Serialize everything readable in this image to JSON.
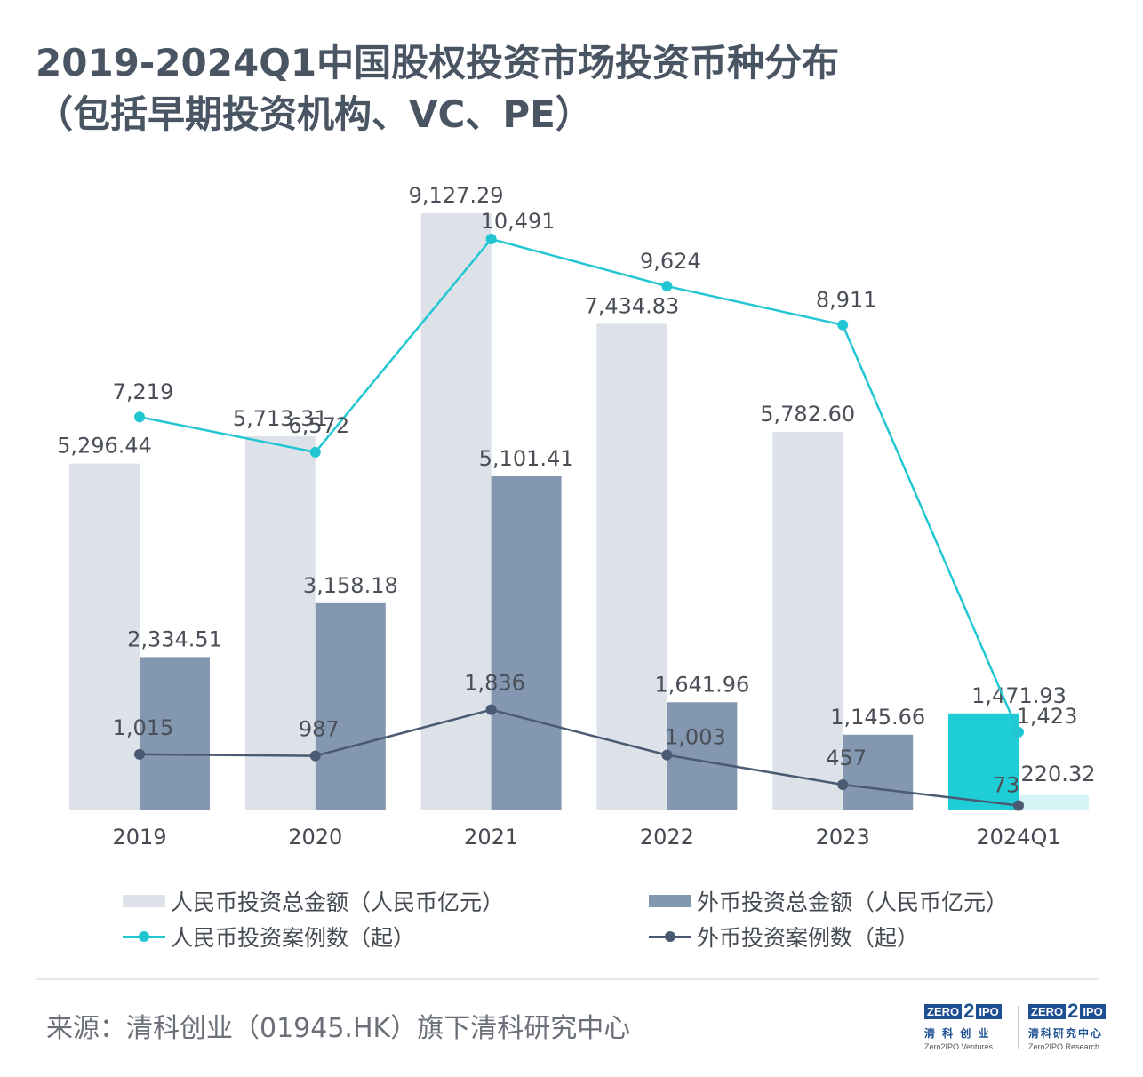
{
  "title": {
    "line1": "2019-2024Q1中国股权投资市场投资币种分布",
    "line2": "（包括早期投资机构、VC、PE）"
  },
  "colors": {
    "rmb_amount": "#dde1e8",
    "rmb_amount_2024": "#1fcdd6",
    "fx_amount": "#8397b0",
    "fx_amount_2024": "#d6f4f6",
    "rmb_count": "#22c6d3",
    "fx_count": "#4a5a72"
  },
  "chart_data": {
    "type": "bar",
    "categories": [
      "2019",
      "2020",
      "2021",
      "2022",
      "2023",
      "2024Q1"
    ],
    "series": [
      {
        "name": "人民币投资总金额（人民币亿元）",
        "kind": "bar",
        "values": [
          5296.44,
          5713.31,
          9127.29,
          7434.83,
          5782.6,
          1471.93
        ],
        "labels": [
          "5,296.44",
          "5,713.31",
          "9,127.29",
          "7,434.83",
          "5,782.60",
          "1,471.93"
        ]
      },
      {
        "name": "外币投资总金额（人民币亿元）",
        "kind": "bar",
        "values": [
          2334.51,
          3158.18,
          5101.41,
          1641.96,
          1145.66,
          220.32
        ],
        "labels": [
          "2,334.51",
          "3,158.18",
          "5,101.41",
          "1,641.96",
          "1,145.66",
          "220.32"
        ]
      },
      {
        "name": "人民币投资案例数（起）",
        "kind": "line",
        "values": [
          7219,
          6572,
          10491,
          9624,
          8911,
          1423
        ],
        "labels": [
          "7,219",
          "6,572",
          "10,491",
          "9,624",
          "8,911",
          "1,423"
        ]
      },
      {
        "name": "外币投资案例数（起）",
        "kind": "line",
        "values": [
          1015,
          987,
          1836,
          1003,
          457,
          73
        ],
        "labels": [
          "1,015",
          "987",
          "1,836",
          "1,003",
          "457",
          "73"
        ]
      }
    ],
    "bar_ylim": [
      0,
      9500
    ],
    "line_ylim": [
      0,
      11500
    ],
    "legend_position": "bottom",
    "grid": false
  },
  "legend": [
    {
      "label": "人民币投资总金额（人民币亿元）",
      "kind": "bar",
      "color_key": "rmb_amount"
    },
    {
      "label": "外币投资总金额（人民币亿元）",
      "kind": "bar",
      "color_key": "fx_amount"
    },
    {
      "label": "人民币投资案例数（起）",
      "kind": "line",
      "color_key": "rmb_count"
    },
    {
      "label": "外币投资案例数（起）",
      "kind": "line",
      "color_key": "fx_count"
    }
  ],
  "footer": {
    "source": "来源：清科创业（01945.HK）旗下清科研究中心"
  },
  "logos": [
    {
      "word1": "ZERO",
      "num": "2",
      "word2": "IPO",
      "cn": "清 科 创 业",
      "en": "Zero2IPO Ventures"
    },
    {
      "word1": "ZERO",
      "num": "2",
      "word2": "IPO",
      "cn": "清科研究中心",
      "en": "Zero2IPO Research"
    }
  ]
}
